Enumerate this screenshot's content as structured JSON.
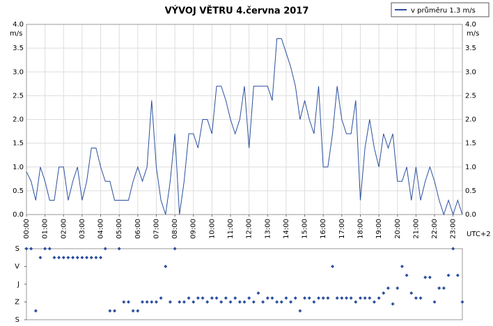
{
  "chart_data": [
    {
      "type": "line",
      "title": "VÝVOJ VĚTRU  4.června 2017",
      "ylabel": "m/s",
      "xlabel": "UTC+2",
      "categories": [
        "00:00",
        null,
        null,
        null,
        "01:00",
        null,
        null,
        null,
        "02:00",
        null,
        null,
        null,
        "03:00",
        null,
        null,
        null,
        "04:00",
        null,
        null,
        null,
        "05:00",
        null,
        null,
        null,
        "06:00",
        null,
        null,
        null,
        "07:00",
        null,
        null,
        null,
        "08:00",
        null,
        null,
        null,
        "09:00",
        null,
        null,
        null,
        "10:00",
        null,
        null,
        null,
        "11:00",
        null,
        null,
        null,
        "12:00",
        null,
        null,
        null,
        "13:00",
        null,
        null,
        null,
        "14:00",
        null,
        null,
        null,
        "15:00",
        null,
        null,
        null,
        "16:00",
        null,
        null,
        null,
        "17:00",
        null,
        null,
        null,
        "18:00",
        null,
        null,
        null,
        "19:00",
        null,
        null,
        null,
        "20:00",
        null,
        null,
        null,
        "21:00",
        null,
        null,
        null,
        "22:00",
        null,
        null,
        null,
        "23:00",
        null,
        null
      ],
      "series": [
        {
          "name": "v průměru 1.3 m/s",
          "color": "#2a4f9e",
          "values": [
            0.9,
            0.7,
            0.3,
            1.0,
            0.7,
            0.3,
            0.3,
            1.0,
            1.0,
            0.3,
            0.7,
            1.0,
            0.3,
            0.7,
            1.4,
            1.4,
            1.0,
            0.7,
            0.7,
            0.3,
            0.3,
            0.3,
            0.3,
            0.7,
            1.0,
            0.7,
            1.0,
            2.4,
            1.0,
            0.3,
            0.0,
            0.7,
            1.7,
            0.0,
            0.7,
            1.7,
            1.7,
            1.4,
            2.0,
            2.0,
            1.7,
            2.7,
            2.7,
            2.4,
            2.0,
            1.7,
            2.0,
            2.7,
            1.4,
            2.7,
            2.7,
            2.7,
            2.7,
            2.4,
            3.7,
            3.7,
            3.4,
            3.1,
            2.7,
            2.0,
            2.4,
            2.0,
            1.7,
            2.7,
            1.0,
            1.0,
            1.7,
            2.7,
            2.0,
            1.7,
            1.7,
            2.4,
            0.3,
            1.4,
            2.0,
            1.4,
            1.0,
            1.7,
            1.4,
            1.7,
            0.7,
            0.7,
            1.0,
            0.3,
            1.0,
            0.3,
            0.7,
            1.0,
            0.7,
            0.3,
            0.0,
            0.3,
            0.0,
            0.3,
            0.0
          ]
        }
      ],
      "ylim": [
        0,
        4
      ],
      "yticks": [
        {
          "value": 0,
          "label": "0.0"
        },
        0.5,
        {
          "value": 1,
          "label": "1.0"
        },
        1.5,
        {
          "value": 2,
          "label": "2.0"
        },
        2.5,
        {
          "value": 3,
          "label": "3.0"
        },
        3.5,
        {
          "value": 4,
          "label": "4.0"
        }
      ],
      "grid": true,
      "legend": "top-right"
    },
    {
      "type": "scatter",
      "color": "#2a4f9e",
      "values": [
        0,
        0,
        315,
        45,
        0,
        0,
        45,
        45,
        45,
        45,
        45,
        45,
        45,
        45,
        45,
        45,
        45,
        0,
        315,
        315,
        0,
        270,
        270,
        315,
        315,
        270,
        270,
        270,
        270,
        250,
        90,
        270,
        0,
        270,
        270,
        250,
        270,
        250,
        250,
        270,
        250,
        250,
        270,
        250,
        270,
        250,
        270,
        270,
        250,
        270,
        225,
        270,
        250,
        250,
        270,
        270,
        250,
        270,
        250,
        315,
        250,
        250,
        270,
        250,
        250,
        250,
        90,
        250,
        250,
        250,
        250,
        270,
        250,
        250,
        250,
        270,
        250,
        225,
        200,
        280,
        200,
        90,
        135,
        225,
        250,
        250,
        145,
        145,
        270,
        200,
        200,
        135,
        0,
        135,
        270
      ],
      "ylim": [
        360,
        0
      ],
      "yticks": [
        {
          "value": 0,
          "label": "S"
        },
        {
          "value": 90,
          "label": "V"
        },
        {
          "value": 180,
          "label": "J"
        },
        {
          "value": 270,
          "label": "Z"
        },
        {
          "value": 360,
          "label": "S"
        }
      ]
    }
  ]
}
